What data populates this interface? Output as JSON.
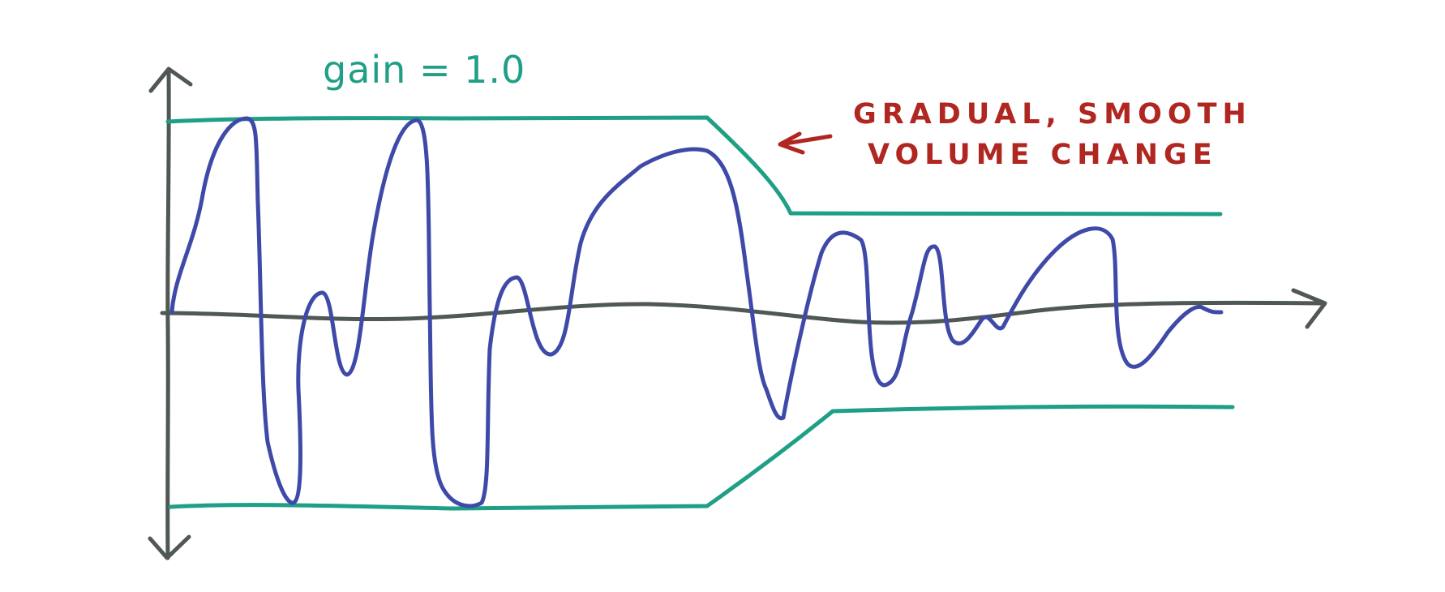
{
  "annotations": {
    "gain_label": "gain = 1.0",
    "volume_note_line1": "GRADUAL, SMOOTH",
    "volume_note_line2": "VOLUME CHANGE"
  },
  "colors": {
    "axis": "#505853",
    "waveform": "#3f4aa8",
    "envelope": "#1f9f86",
    "annotation_text": "#b02620",
    "gain_text": "#1f9f86",
    "background": "#ffffff"
  }
}
